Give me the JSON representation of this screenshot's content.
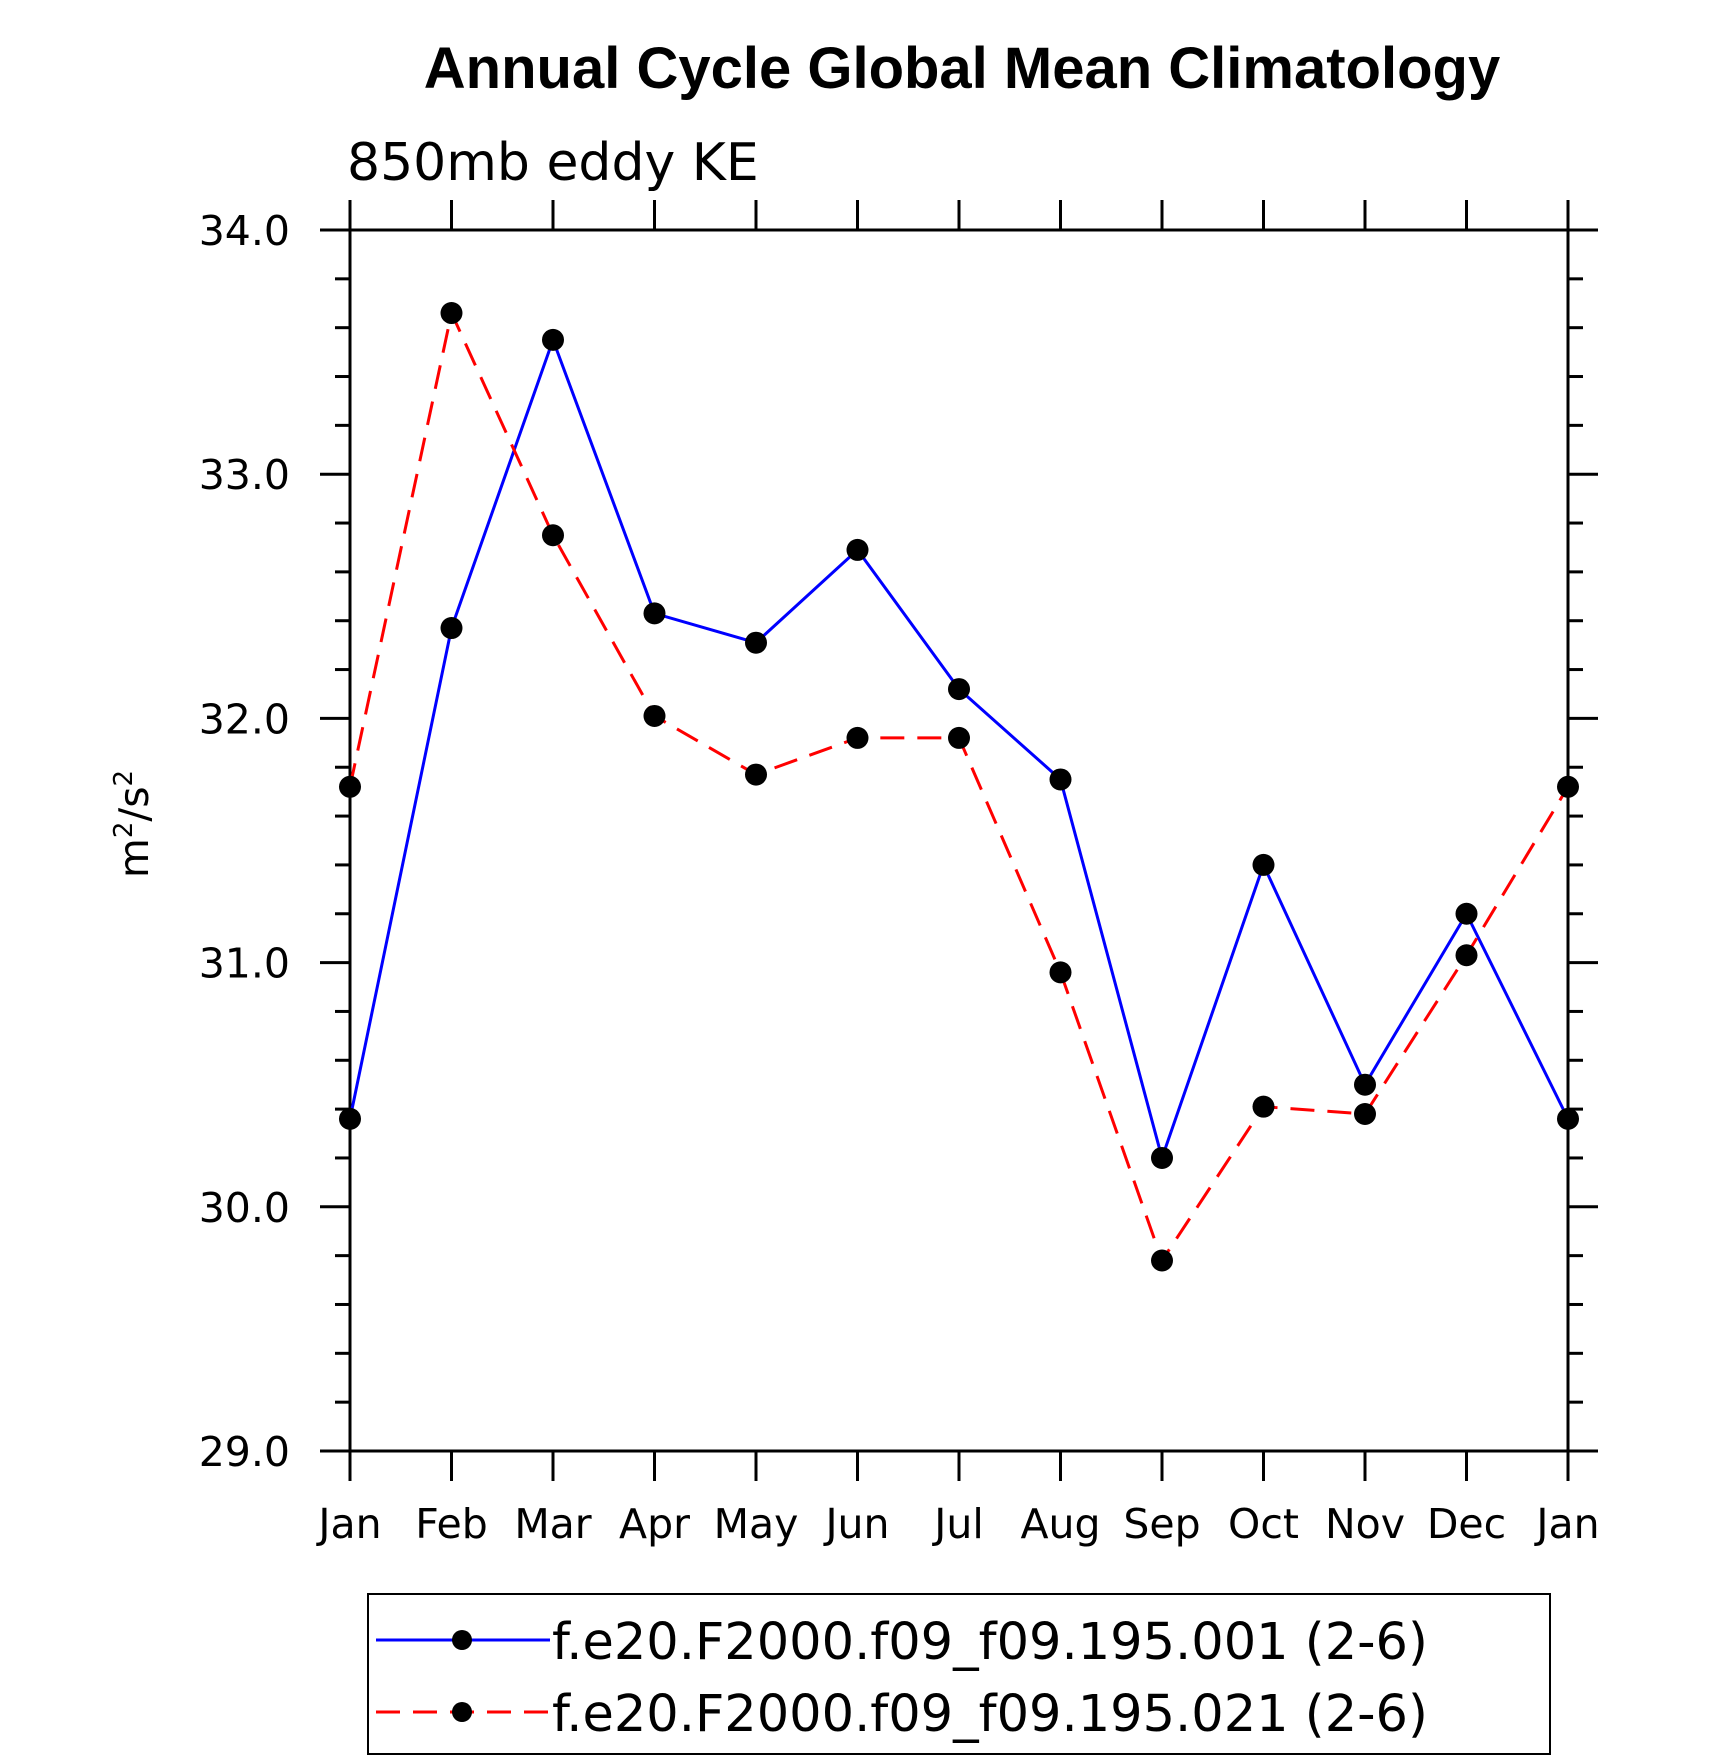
{
  "chart_data": {
    "type": "line",
    "title": "Annual Cycle Global Mean Climatology",
    "subtitle": "850mb eddy KE",
    "xlabel": "",
    "ylabel": "m2/s2",
    "ylabel_parts": {
      "base1": "m",
      "sup1": "2",
      "sep": "/s",
      "sup2": "2"
    },
    "categories": [
      "Jan",
      "Feb",
      "Mar",
      "Apr",
      "May",
      "Jun",
      "Jul",
      "Aug",
      "Sep",
      "Oct",
      "Nov",
      "Dec",
      "Jan"
    ],
    "ylim": [
      29.0,
      34.0
    ],
    "y_ticks": [
      "34.0",
      "33.0",
      "32.0",
      "31.0",
      "30.0",
      "29.0"
    ],
    "y_tick_values": [
      34.0,
      33.0,
      32.0,
      31.0,
      30.0,
      29.0
    ],
    "y_minor_step": 0.2,
    "grid": false,
    "legend_position": "bottom",
    "series": [
      {
        "name": "f.e20.F2000.f09_f09.195.001 (2-6)",
        "color": "#0000ff",
        "dash": "solid",
        "marker_color": "#000000",
        "values": [
          30.36,
          32.37,
          33.55,
          32.43,
          32.31,
          32.69,
          32.12,
          31.75,
          30.2,
          31.4,
          30.5,
          31.2,
          30.36
        ]
      },
      {
        "name": "f.e20.F2000.f09_f09.195.021 (2-6)",
        "color": "#ff0000",
        "dash": "dashed",
        "marker_color": "#000000",
        "values": [
          31.72,
          33.66,
          32.75,
          32.01,
          31.77,
          31.92,
          31.92,
          30.96,
          29.78,
          30.41,
          30.38,
          31.03,
          31.72
        ]
      }
    ]
  }
}
